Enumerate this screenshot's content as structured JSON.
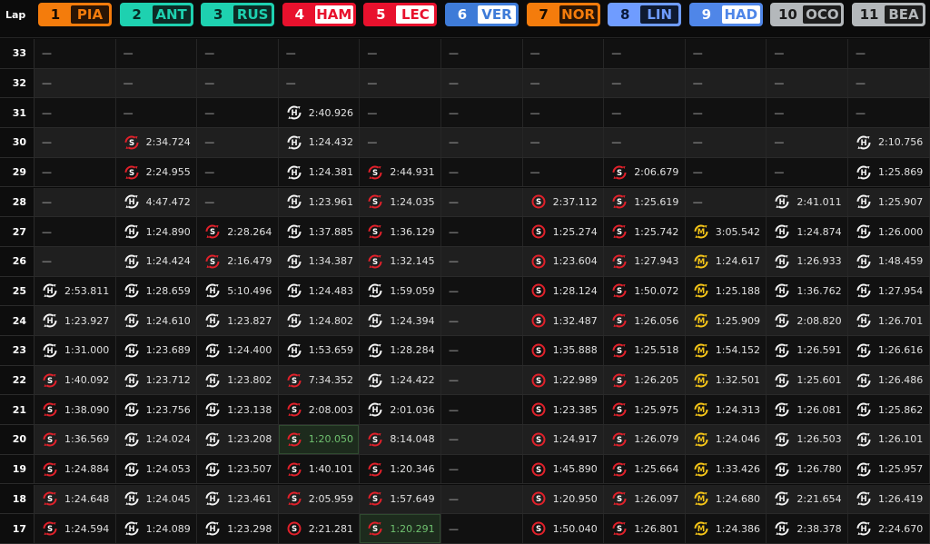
{
  "header": {
    "lap_label": "Lap"
  },
  "empty": "—",
  "tyre_colors": {
    "S": "#e0202a",
    "H": "#f2f2f2",
    "M": "#f5c518"
  },
  "best_color": "#6fc06f",
  "drivers": [
    {
      "pos": "1",
      "code": "PIA",
      "color": "#f47c0c",
      "num_fg": "#1a0d00",
      "box_bg": "#2a1505",
      "box_fg": "#f47c0c"
    },
    {
      "pos": "2",
      "code": "ANT",
      "color": "#1ed1b0",
      "num_fg": "#062b25",
      "box_bg": "#0d2a25",
      "box_fg": "#1ed1b0"
    },
    {
      "pos": "3",
      "code": "RUS",
      "color": "#1ed1b0",
      "num_fg": "#062b25",
      "box_bg": "#0d2a25",
      "box_fg": "#1ed1b0"
    },
    {
      "pos": "4",
      "code": "HAM",
      "color": "#e8112d",
      "num_fg": "#ffffff",
      "box_bg": "#ffffff",
      "box_fg": "#e8112d"
    },
    {
      "pos": "5",
      "code": "LEC",
      "color": "#e8112d",
      "num_fg": "#ffffff",
      "box_bg": "#ffffff",
      "box_fg": "#e8112d"
    },
    {
      "pos": "6",
      "code": "VER",
      "color": "#3e7bd8",
      "num_fg": "#ffffff",
      "box_bg": "#ffffff",
      "box_fg": "#3e7bd8"
    },
    {
      "pos": "7",
      "code": "NOR",
      "color": "#f47c0c",
      "num_fg": "#1a0d00",
      "box_bg": "#2a1505",
      "box_fg": "#f47c0c"
    },
    {
      "pos": "8",
      "code": "LIN",
      "color": "#6f9cff",
      "num_fg": "#0a1a3a",
      "box_bg": "#0f1a30",
      "box_fg": "#6f9cff"
    },
    {
      "pos": "9",
      "code": "HAD",
      "color": "#4f86e8",
      "num_fg": "#ffffff",
      "box_bg": "#ffffff",
      "box_fg": "#4f86e8"
    },
    {
      "pos": "10",
      "code": "OCO",
      "color": "#b4b8bb",
      "num_fg": "#1a1a1a",
      "box_bg": "#1d1d1d",
      "box_fg": "#b4b8bb"
    },
    {
      "pos": "11",
      "code": "BEA",
      "color": "#b4b8bb",
      "num_fg": "#1a1a1a",
      "box_bg": "#1d1d1d",
      "box_fg": "#b4b8bb"
    }
  ],
  "rows": [
    {
      "lap": "33",
      "cells": [
        null,
        null,
        null,
        null,
        null,
        null,
        null,
        null,
        null,
        null,
        null
      ]
    },
    {
      "lap": "32",
      "cells": [
        null,
        null,
        null,
        null,
        null,
        null,
        null,
        null,
        null,
        null,
        null
      ]
    },
    {
      "lap": "31",
      "cells": [
        null,
        null,
        null,
        [
          "H",
          "2:40.926"
        ],
        null,
        null,
        null,
        null,
        null,
        null,
        null
      ]
    },
    {
      "lap": "30",
      "cells": [
        null,
        [
          "S",
          "2:34.724"
        ],
        null,
        [
          "H",
          "1:24.432"
        ],
        null,
        null,
        null,
        null,
        null,
        null,
        [
          "H",
          "2:10.756"
        ]
      ]
    },
    {
      "lap": "29",
      "cells": [
        null,
        [
          "S",
          "2:24.955"
        ],
        null,
        [
          "H",
          "1:24.381"
        ],
        [
          "S",
          "2:44.931"
        ],
        null,
        null,
        [
          "S",
          "2:06.679"
        ],
        null,
        null,
        [
          "H",
          "1:25.869"
        ]
      ]
    },
    {
      "lap": "28",
      "cells": [
        null,
        [
          "H",
          "4:47.472"
        ],
        null,
        [
          "H",
          "1:23.961"
        ],
        [
          "S",
          "1:24.035"
        ],
        null,
        [
          "S",
          "2:37.112",
          "new"
        ],
        [
          "S",
          "1:25.619"
        ],
        null,
        [
          "H",
          "2:41.011"
        ],
        [
          "H",
          "1:25.907"
        ]
      ]
    },
    {
      "lap": "27",
      "cells": [
        null,
        [
          "H",
          "1:24.890"
        ],
        [
          "S",
          "2:28.264"
        ],
        [
          "H",
          "1:37.885"
        ],
        [
          "S",
          "1:36.129"
        ],
        null,
        [
          "S",
          "1:25.274",
          "new"
        ],
        [
          "S",
          "1:25.742"
        ],
        [
          "M",
          "3:05.542"
        ],
        [
          "H",
          "1:24.874"
        ],
        [
          "H",
          "1:26.000"
        ]
      ]
    },
    {
      "lap": "26",
      "cells": [
        null,
        [
          "H",
          "1:24.424"
        ],
        [
          "S",
          "2:16.479"
        ],
        [
          "H",
          "1:34.387"
        ],
        [
          "S",
          "1:32.145"
        ],
        null,
        [
          "S",
          "1:23.604",
          "new"
        ],
        [
          "S",
          "1:27.943"
        ],
        [
          "M",
          "1:24.617"
        ],
        [
          "H",
          "1:26.933"
        ],
        [
          "H",
          "1:48.459"
        ]
      ]
    },
    {
      "lap": "25",
      "cells": [
        [
          "H",
          "2:53.811"
        ],
        [
          "H",
          "1:28.659"
        ],
        [
          "H",
          "5:10.496"
        ],
        [
          "H",
          "1:24.483"
        ],
        [
          "H",
          "1:59.059"
        ],
        null,
        [
          "S",
          "1:28.124",
          "new"
        ],
        [
          "S",
          "1:50.072"
        ],
        [
          "M",
          "1:25.188"
        ],
        [
          "H",
          "1:36.762"
        ],
        [
          "H",
          "1:27.954"
        ]
      ]
    },
    {
      "lap": "24",
      "cells": [
        [
          "H",
          "1:23.927"
        ],
        [
          "H",
          "1:24.610"
        ],
        [
          "H",
          "1:23.827"
        ],
        [
          "H",
          "1:24.802"
        ],
        [
          "H",
          "1:24.394"
        ],
        null,
        [
          "S",
          "1:32.487",
          "new"
        ],
        [
          "S",
          "1:26.056"
        ],
        [
          "M",
          "1:25.909"
        ],
        [
          "H",
          "2:08.820"
        ],
        [
          "H",
          "1:26.701"
        ]
      ]
    },
    {
      "lap": "23",
      "cells": [
        [
          "H",
          "1:31.000"
        ],
        [
          "H",
          "1:23.689"
        ],
        [
          "H",
          "1:24.400"
        ],
        [
          "H",
          "1:53.659"
        ],
        [
          "H",
          "1:28.284"
        ],
        null,
        [
          "S",
          "1:35.888",
          "new"
        ],
        [
          "S",
          "1:25.518"
        ],
        [
          "M",
          "1:54.152"
        ],
        [
          "H",
          "1:26.591"
        ],
        [
          "H",
          "1:26.616"
        ]
      ]
    },
    {
      "lap": "22",
      "cells": [
        [
          "S",
          "1:40.092"
        ],
        [
          "H",
          "1:23.712"
        ],
        [
          "H",
          "1:23.802"
        ],
        [
          "S",
          "7:34.352"
        ],
        [
          "H",
          "1:24.422"
        ],
        null,
        [
          "S",
          "1:22.989",
          "new"
        ],
        [
          "S",
          "1:26.205"
        ],
        [
          "M",
          "1:32.501"
        ],
        [
          "H",
          "1:25.601"
        ],
        [
          "H",
          "1:26.486"
        ]
      ]
    },
    {
      "lap": "21",
      "cells": [
        [
          "S",
          "1:38.090"
        ],
        [
          "H",
          "1:23.756"
        ],
        [
          "H",
          "1:23.138"
        ],
        [
          "S",
          "2:08.003"
        ],
        [
          "H",
          "2:01.036"
        ],
        null,
        [
          "S",
          "1:23.385",
          "new"
        ],
        [
          "S",
          "1:25.975"
        ],
        [
          "M",
          "1:24.313"
        ],
        [
          "H",
          "1:26.081"
        ],
        [
          "H",
          "1:25.862"
        ]
      ]
    },
    {
      "lap": "20",
      "cells": [
        [
          "S",
          "1:36.569"
        ],
        [
          "H",
          "1:24.024"
        ],
        [
          "H",
          "1:23.208"
        ],
        [
          "S",
          "1:20.050",
          "best"
        ],
        [
          "S",
          "8:14.048"
        ],
        null,
        [
          "S",
          "1:24.917",
          "new"
        ],
        [
          "S",
          "1:26.079"
        ],
        [
          "M",
          "1:24.046"
        ],
        [
          "H",
          "1:26.503"
        ],
        [
          "H",
          "1:26.101"
        ]
      ]
    },
    {
      "lap": "19",
      "cells": [
        [
          "S",
          "1:24.884"
        ],
        [
          "H",
          "1:24.053"
        ],
        [
          "H",
          "1:23.507"
        ],
        [
          "S",
          "1:40.101"
        ],
        [
          "S",
          "1:20.346"
        ],
        null,
        [
          "S",
          "1:45.890",
          "new"
        ],
        [
          "S",
          "1:25.664"
        ],
        [
          "M",
          "1:33.426"
        ],
        [
          "H",
          "1:26.780"
        ],
        [
          "H",
          "1:25.957"
        ]
      ]
    },
    {
      "lap": "18",
      "cells": [
        [
          "S",
          "1:24.648"
        ],
        [
          "H",
          "1:24.045"
        ],
        [
          "H",
          "1:23.461"
        ],
        [
          "S",
          "2:05.959"
        ],
        [
          "S",
          "1:57.649"
        ],
        null,
        [
          "S",
          "1:20.950",
          "new"
        ],
        [
          "S",
          "1:26.097"
        ],
        [
          "M",
          "1:24.680"
        ],
        [
          "H",
          "2:21.654"
        ],
        [
          "H",
          "1:26.419"
        ]
      ]
    },
    {
      "lap": "17",
      "cells": [
        [
          "S",
          "1:24.594"
        ],
        [
          "H",
          "1:24.089"
        ],
        [
          "H",
          "1:23.298"
        ],
        [
          "S",
          "2:21.281",
          "new"
        ],
        [
          "S",
          "1:20.291",
          "best"
        ],
        null,
        [
          "S",
          "1:50.040",
          "new"
        ],
        [
          "S",
          "1:26.801"
        ],
        [
          "M",
          "1:24.386"
        ],
        [
          "H",
          "2:38.378"
        ],
        [
          "H",
          "2:24.670"
        ]
      ]
    }
  ]
}
